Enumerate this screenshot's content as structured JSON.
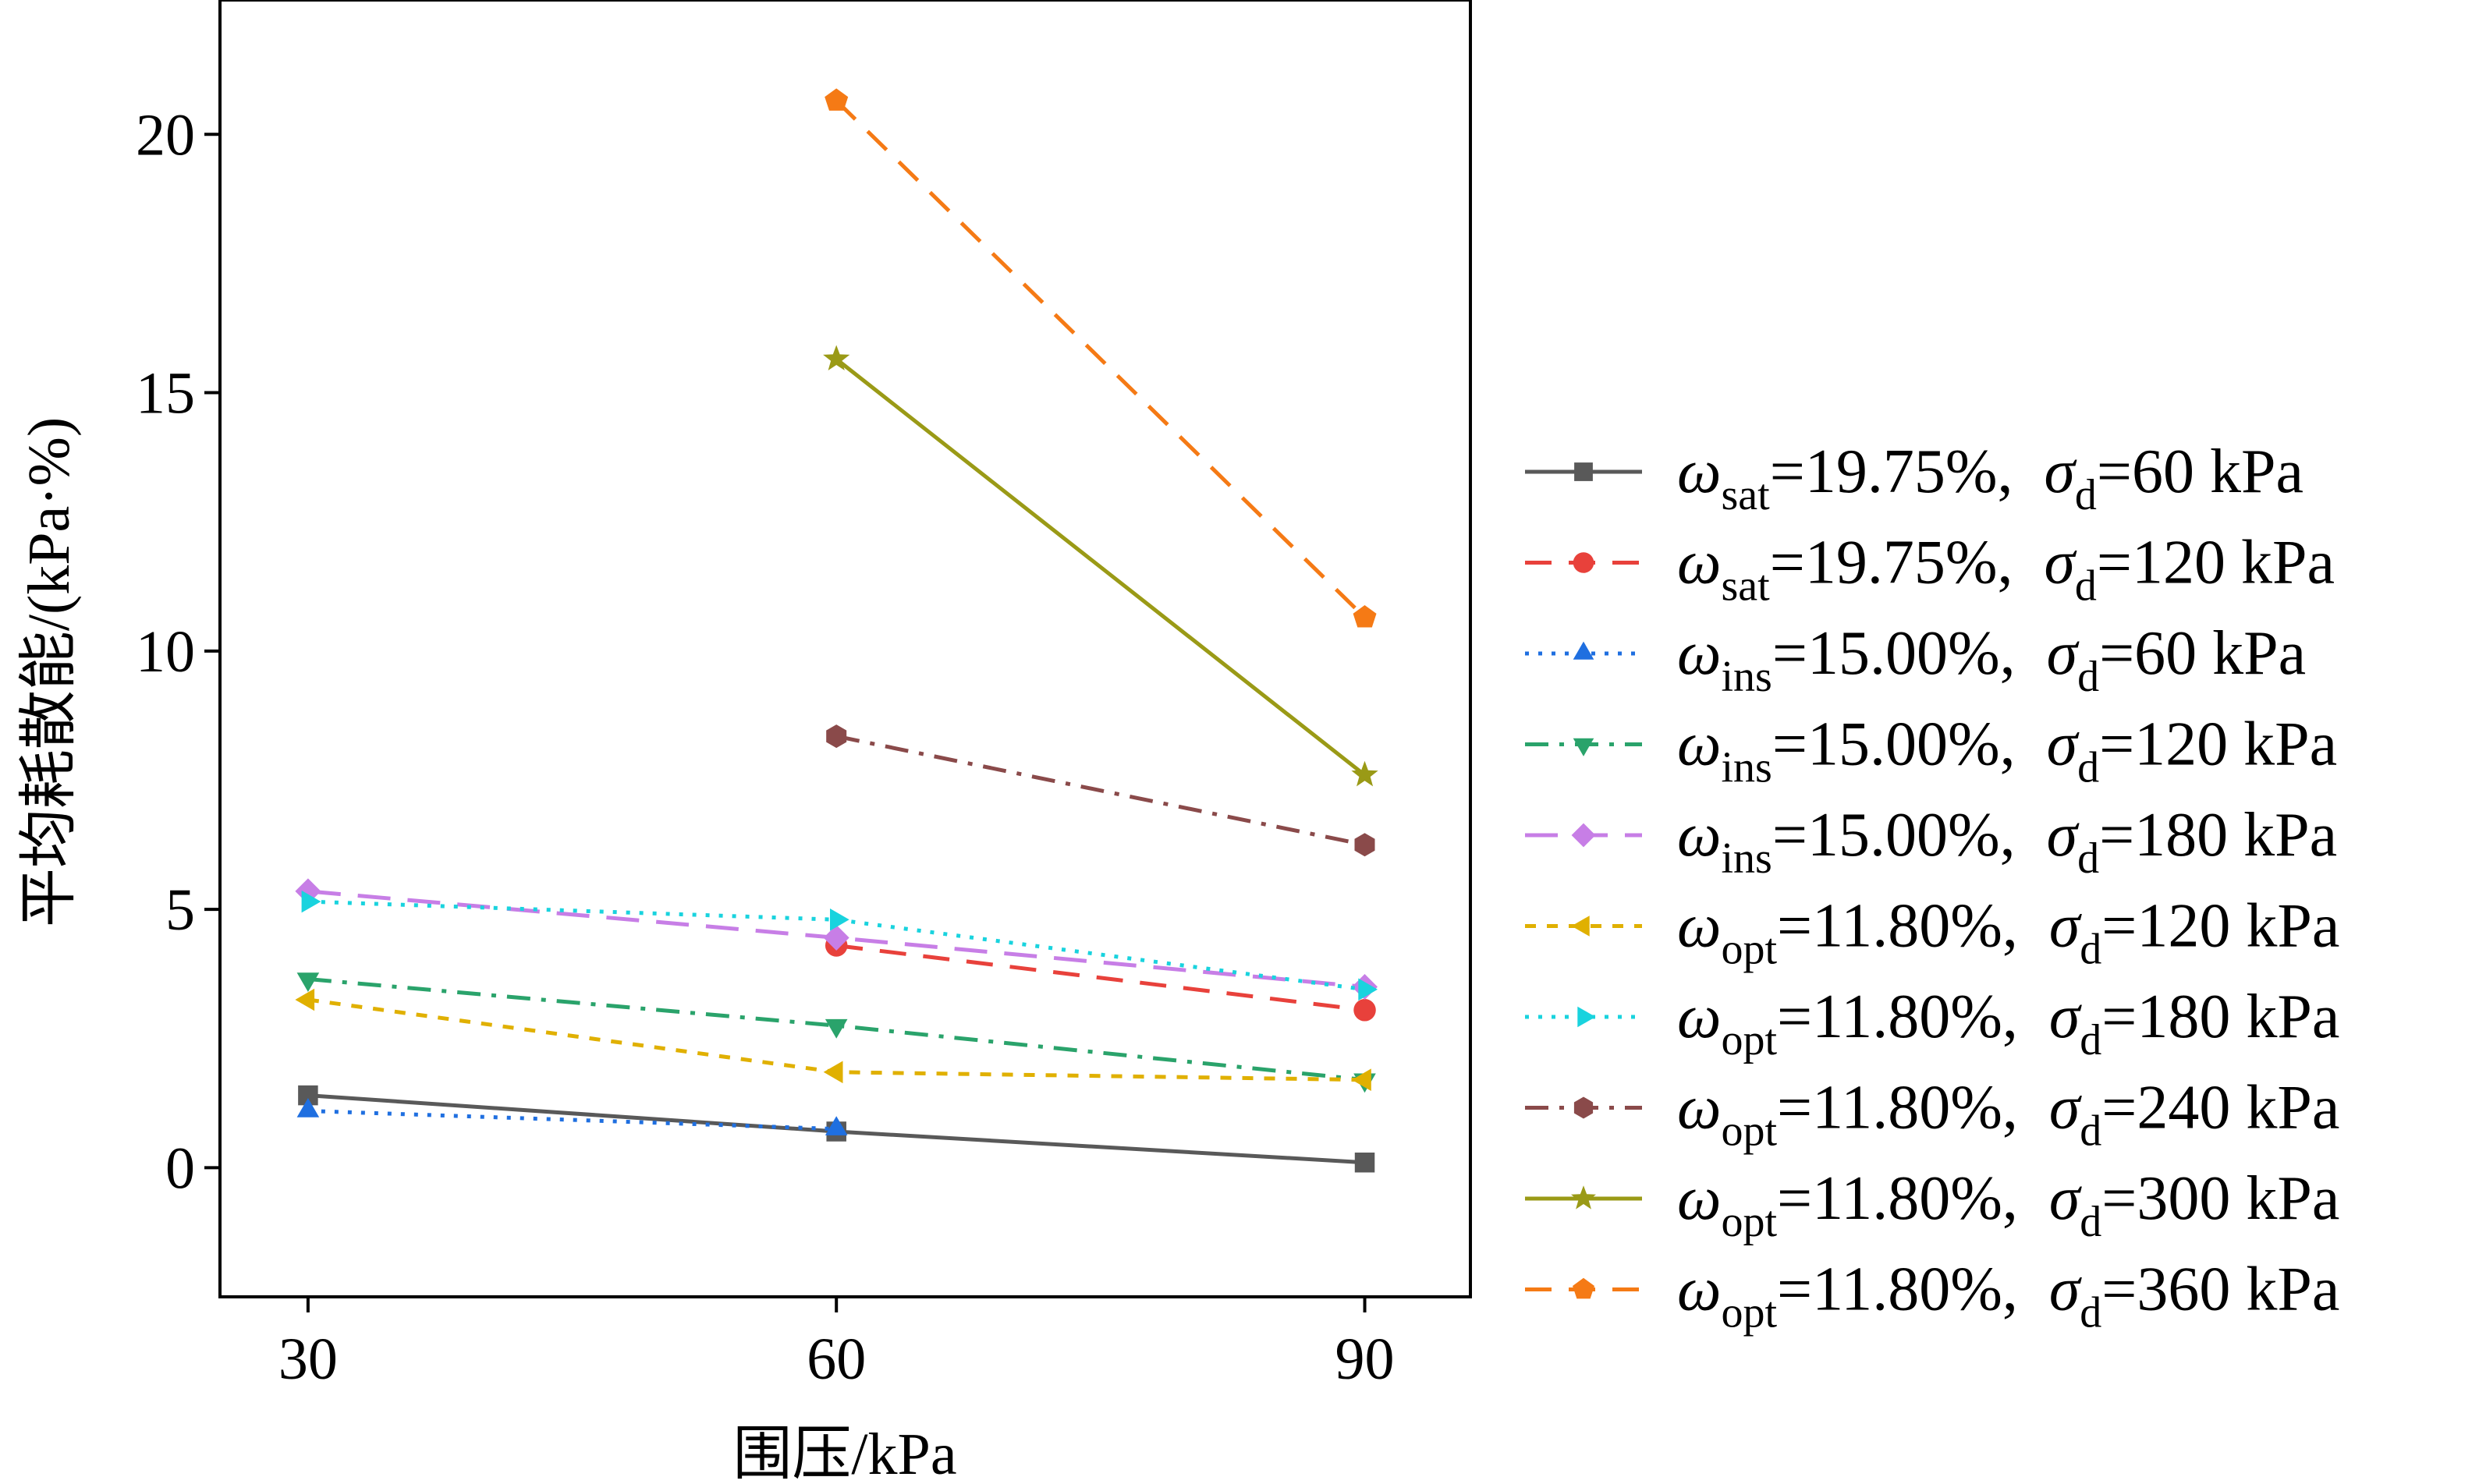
{
  "chart_data": {
    "type": "line",
    "title": "",
    "xlabel": "围压/kPa",
    "ylabel": "平均耗散能/(kPa·%)",
    "x": [
      30,
      60,
      90
    ],
    "x_ticks": [
      "30",
      "60",
      "90"
    ],
    "y_ticks": [
      "0",
      "5",
      "10",
      "15",
      "20"
    ],
    "xlim": [
      25,
      96
    ],
    "ylim": [
      -2.5,
      22.6
    ],
    "grid": false,
    "legend_position": "right",
    "series": [
      {
        "name": "ω_sat=19.75%, σ_d=60 kPa",
        "var": "ω",
        "sub": "sat",
        "pct": "=19.75%,",
        "sigma": "σ",
        "sigma_sub": "d",
        "load": "=60 kPa",
        "color": "#595959",
        "dash": "solid",
        "marker": "square",
        "values": [
          1.4,
          0.7,
          0.1
        ]
      },
      {
        "name": "ω_sat=19.75%, σ_d=120 kPa",
        "var": "ω",
        "sub": "sat",
        "pct": "=19.75%,",
        "sigma": "σ",
        "sigma_sub": "d",
        "load": "=120 kPa",
        "color": "#e8413b",
        "dash": "dashed",
        "marker": "circle",
        "values": [
          null,
          4.3,
          3.05
        ]
      },
      {
        "name": "ω_ins=15.00%, σ_d=60 kPa",
        "var": "ω",
        "sub": "ins",
        "pct": "=15.00%,",
        "sigma": "σ",
        "sigma_sub": "d",
        "load": "=60 kPa",
        "color": "#1f6fe0",
        "dash": "dotted",
        "marker": "triangle-up",
        "values": [
          1.1,
          0.75,
          null
        ]
      },
      {
        "name": "ω_ins=15.00%, σ_d=120 kPa",
        "var": "ω",
        "sub": "ins",
        "pct": "=15.00%,",
        "sigma": "σ",
        "sigma_sub": "d",
        "load": "=120 kPa",
        "color": "#2aa36b",
        "dash": "dashdot",
        "marker": "triangle-down",
        "values": [
          3.65,
          2.75,
          1.7
        ]
      },
      {
        "name": "ω_ins=15.00%, σ_d=180 kPa",
        "var": "ω",
        "sub": "ins",
        "pct": "=15.00%,",
        "sigma": "σ",
        "sigma_sub": "d",
        "load": "=180 kPa",
        "color": "#c77ee6",
        "dash": "longdash",
        "marker": "diamond",
        "values": [
          5.35,
          4.45,
          3.5
        ]
      },
      {
        "name": "ω_opt=11.80%, σ_d=120 kPa",
        "var": "ω",
        "sub": "opt",
        "pct": "=11.80%,",
        "sigma": "σ",
        "sigma_sub": "d",
        "load": "=120 kPa",
        "color": "#e0b000",
        "dash": "shortdash",
        "marker": "triangle-left",
        "values": [
          3.25,
          1.85,
          1.7
        ]
      },
      {
        "name": "ω_opt=11.80%, σ_d=180 kPa",
        "var": "ω",
        "sub": "opt",
        "pct": "=11.80%,",
        "sigma": "σ",
        "sigma_sub": "d",
        "load": "=180 kPa",
        "color": "#19d3de",
        "dash": "dotted",
        "marker": "triangle-right",
        "values": [
          5.15,
          4.8,
          3.45
        ]
      },
      {
        "name": "ω_opt=11.80%, σ_d=240 kPa",
        "var": "ω",
        "sub": "opt",
        "pct": "=11.80%,",
        "sigma": "σ",
        "sigma_sub": "d",
        "load": "=240 kPa",
        "color": "#8a4a4a",
        "dash": "dashdot",
        "marker": "hexagon",
        "values": [
          null,
          8.35,
          6.25
        ]
      },
      {
        "name": "ω_opt=11.80%, σ_d=300 kPa",
        "var": "ω",
        "sub": "opt",
        "pct": "=11.80%,",
        "sigma": "σ",
        "sigma_sub": "d",
        "load": "=300 kPa",
        "color": "#9a9a16",
        "dash": "solid",
        "marker": "star",
        "values": [
          null,
          15.65,
          7.6
        ]
      },
      {
        "name": "ω_opt=11.80%, σ_d=360 kPa",
        "var": "ω",
        "sub": "opt",
        "pct": "=11.80%,",
        "sigma": "σ",
        "sigma_sub": "d",
        "load": "=360 kPa",
        "color": "#f57a15",
        "dash": "dashed",
        "marker": "pentagon",
        "values": [
          null,
          20.65,
          10.65
        ]
      }
    ]
  }
}
